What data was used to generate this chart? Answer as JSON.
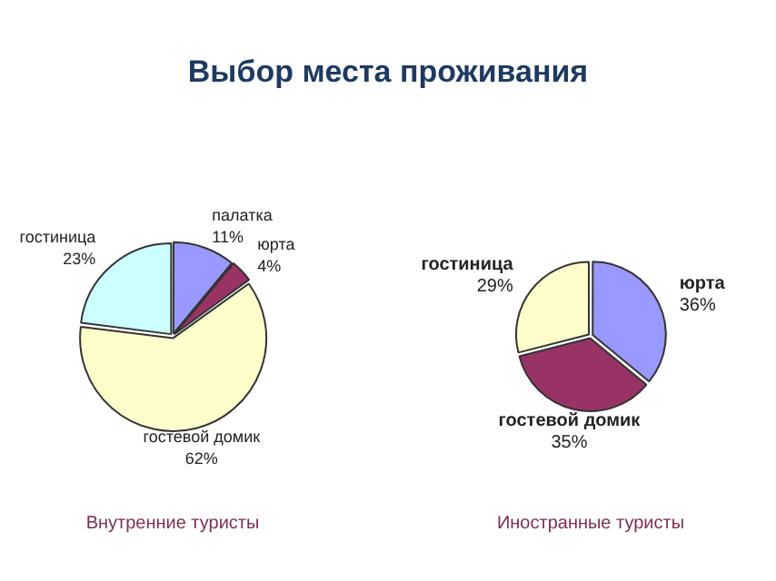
{
  "chart_data": [
    {
      "type": "pie",
      "title": "Выбор места проживания",
      "categories": [
        "палатка",
        "юрта",
        "гостевой домик",
        "гостиница"
      ],
      "values": [
        11,
        4,
        62,
        23
      ],
      "value_labels": [
        "11%",
        "4%",
        "62%",
        "23%"
      ],
      "colors": [
        "#9999ff",
        "#993366",
        "#ffffcc",
        "#ccffff"
      ],
      "legend": false,
      "annotations": [
        "Внутренние туристы"
      ]
    },
    {
      "type": "pie",
      "categories": [
        "юрта",
        "гостевой домик",
        "гостиница"
      ],
      "values": [
        36,
        35,
        29
      ],
      "value_labels": [
        "36%",
        "35%",
        "29%"
      ],
      "colors": [
        "#9999ff",
        "#993366",
        "#ffffcc"
      ],
      "legend": false,
      "annotations": [
        "Иностранные туристы"
      ]
    }
  ]
}
